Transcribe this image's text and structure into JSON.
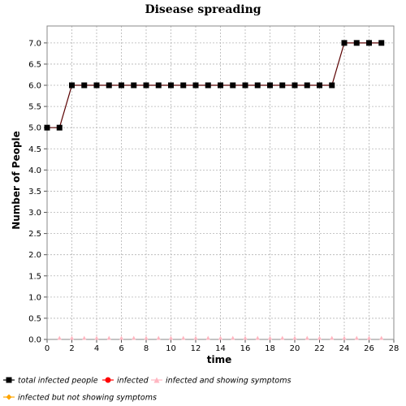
{
  "chart_data": {
    "type": "line",
    "title": "Disease spreading",
    "xlabel": "time",
    "ylabel": "Number of People",
    "xlim": [
      0,
      28
    ],
    "ylim": [
      0,
      7.4
    ],
    "x_ticks": [
      "0",
      "2",
      "4",
      "6",
      "8",
      "10",
      "12",
      "14",
      "16",
      "18",
      "20",
      "22",
      "24",
      "26",
      "28"
    ],
    "y_ticks": [
      "0.0",
      "0.5",
      "1.0",
      "1.5",
      "2.0",
      "2.5",
      "3.0",
      "3.5",
      "4.0",
      "4.5",
      "5.0",
      "5.5",
      "6.0",
      "6.5",
      "7.0"
    ],
    "grid": true,
    "legend_placement": "bottom",
    "series": [
      {
        "name": "total infected people",
        "color": "#000000",
        "line_color": "#5a0000",
        "marker": "square",
        "x": [
          0,
          1,
          2,
          3,
          4,
          5,
          6,
          7,
          8,
          9,
          10,
          11,
          12,
          13,
          14,
          15,
          16,
          17,
          18,
          19,
          20,
          21,
          22,
          23,
          24,
          25,
          26,
          27
        ],
        "y": [
          5,
          5,
          6,
          6,
          6,
          6,
          6,
          6,
          6,
          6,
          6,
          6,
          6,
          6,
          6,
          6,
          6,
          6,
          6,
          6,
          6,
          6,
          6,
          6,
          7,
          7,
          7,
          7
        ]
      },
      {
        "name": "infected",
        "color": "#ff0000",
        "marker": "circle",
        "x": [],
        "y": []
      },
      {
        "name": "infected and showing symptoms",
        "color": "#ffb6c1",
        "marker": "triangle",
        "x": [
          1,
          2,
          3,
          4,
          5,
          6,
          7,
          8,
          9,
          10,
          11,
          12,
          13,
          14,
          15,
          16,
          17,
          18,
          19,
          20,
          21,
          22,
          23,
          24,
          25,
          26,
          27
        ],
        "y": [
          0,
          0,
          0,
          0,
          0,
          0,
          0,
          0,
          0,
          0,
          0,
          0,
          0,
          0,
          0,
          0,
          0,
          0,
          0,
          0,
          0,
          0,
          0,
          0,
          0,
          0,
          0
        ]
      },
      {
        "name": "infected but not showing symptoms",
        "color": "#ffa500",
        "marker": "diamond",
        "x": [],
        "y": []
      }
    ]
  }
}
